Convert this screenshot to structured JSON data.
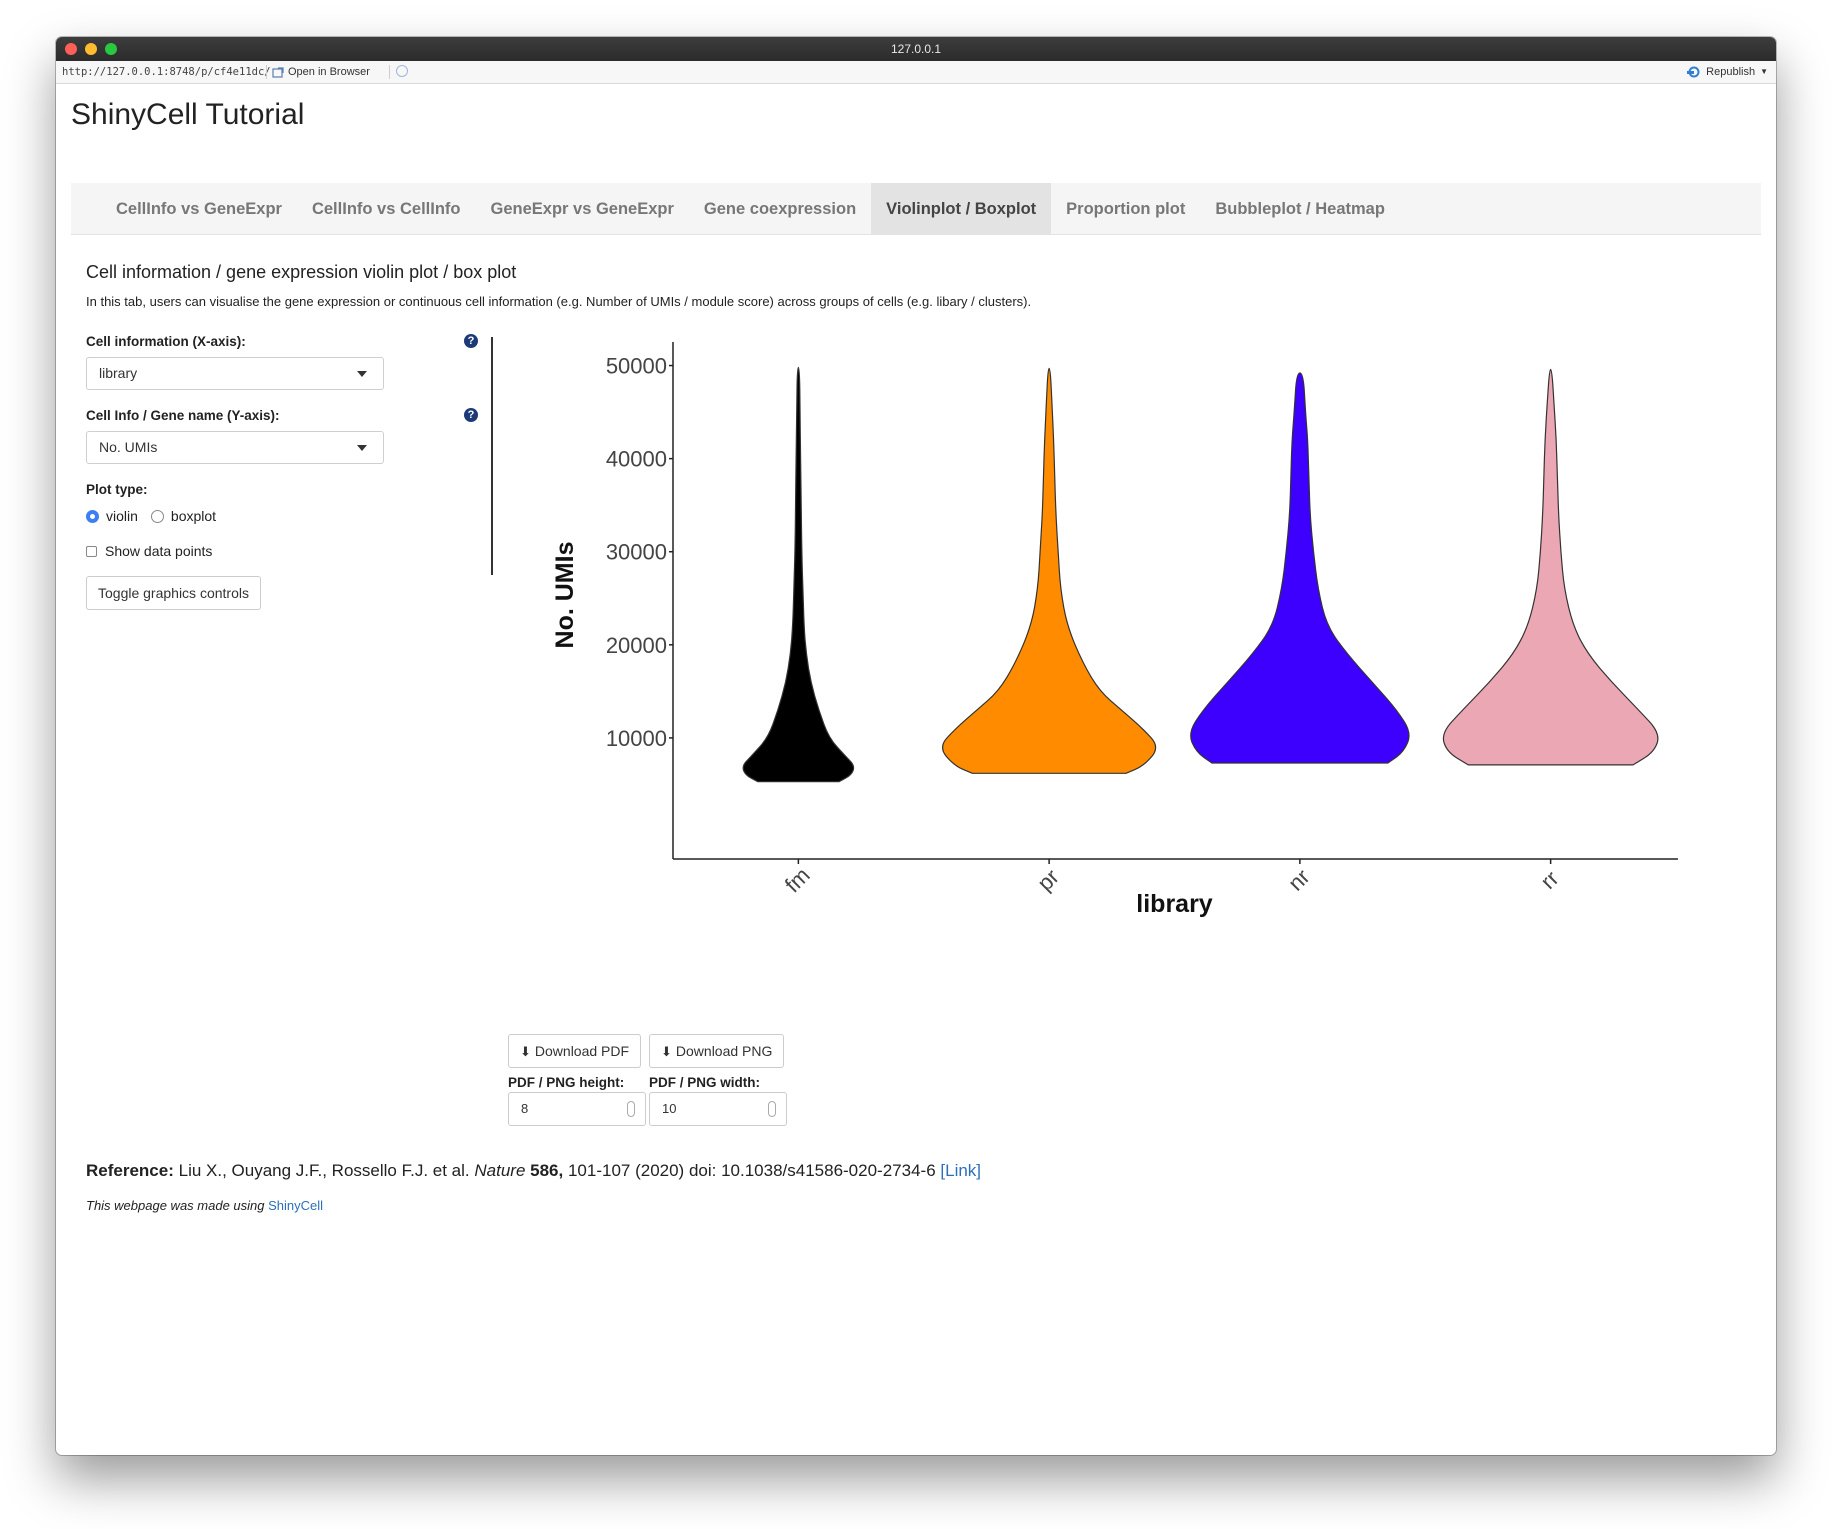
{
  "window": {
    "title": "127.0.0.1"
  },
  "urlbar": {
    "url": "http://127.0.0.1:8748/p/cf4e11dc/",
    "open_in_browser": "Open in Browser",
    "republish": "Republish"
  },
  "app": {
    "title": "ShinyCell Tutorial"
  },
  "tabs": [
    {
      "label": "CellInfo vs GeneExpr"
    },
    {
      "label": "CellInfo vs CellInfo"
    },
    {
      "label": "GeneExpr vs GeneExpr"
    },
    {
      "label": "Gene coexpression"
    },
    {
      "label": "Violinplot / Boxplot"
    },
    {
      "label": "Proportion plot"
    },
    {
      "label": "Bubbleplot / Heatmap"
    }
  ],
  "active_tab": "Violinplot / Boxplot",
  "section": {
    "title": "Cell information / gene expression violin plot / box plot",
    "description": "In this tab, users can visualise the gene expression or continuous cell information (e.g. Number of UMIs / module score) across groups of cells (e.g. libary / clusters)."
  },
  "controls": {
    "x_label": "Cell information (X-axis):",
    "x_value": "library",
    "y_label": "Cell Info / Gene name (Y-axis):",
    "y_value": "No. UMIs",
    "plot_type_label": "Plot type:",
    "plot_type_options": [
      "violin",
      "boxplot"
    ],
    "plot_type_selected": "violin",
    "show_points_label": "Show data points",
    "show_points_checked": false,
    "toggle_button": "Toggle graphics controls",
    "help_icon": "question-circle-icon"
  },
  "downloads": {
    "pdf_button": "Download PDF",
    "png_button": "Download PNG",
    "icon": "download-icon",
    "height_label": "PDF / PNG height:",
    "height_value": "8",
    "width_label": "PDF / PNG width:",
    "width_value": "10"
  },
  "reference": {
    "label": "Reference:",
    "authors": "Liu X., Ouyang J.F., Rossello F.J. et al.",
    "journal": "Nature",
    "volume": "586,",
    "pages_doi": "101-107 (2020) doi: 10.1038/s41586-020-2734-6",
    "link_text": "[Link]"
  },
  "footer": {
    "text": "This webpage was made using",
    "link_text": "ShinyCell"
  },
  "chart_data": {
    "type": "violin",
    "xlabel": "library",
    "ylabel": "No. UMIs",
    "categories": [
      "fm",
      "pr",
      "nr",
      "rr"
    ],
    "colors": [
      "#000000",
      "#ff8c00",
      "#3d00ff",
      "#eba8b4"
    ],
    "ylim": [
      2900,
      52100
    ],
    "yticks": [
      10000,
      20000,
      30000,
      40000,
      50000
    ],
    "ytick_labels": [
      "10000",
      "20000",
      "30000",
      "40000",
      "50000"
    ],
    "grid": false,
    "violins": [
      {
        "name": "fm",
        "min": 5300,
        "max": 49800,
        "profile": [
          [
            5300,
            0.36
          ],
          [
            6000,
            0.47
          ],
          [
            7000,
            0.5
          ],
          [
            8000,
            0.42
          ],
          [
            10000,
            0.27
          ],
          [
            13000,
            0.18
          ],
          [
            16000,
            0.11
          ],
          [
            19000,
            0.07
          ],
          [
            22000,
            0.05
          ],
          [
            26000,
            0.04
          ],
          [
            30000,
            0.03
          ],
          [
            35000,
            0.025
          ],
          [
            40000,
            0.02
          ],
          [
            45000,
            0.015
          ],
          [
            49800,
            0.01
          ]
        ]
      },
      {
        "name": "pr",
        "min": 6200,
        "max": 49700,
        "profile": [
          [
            6200,
            0.68
          ],
          [
            7000,
            0.84
          ],
          [
            9000,
            0.98
          ],
          [
            11000,
            0.83
          ],
          [
            13000,
            0.64
          ],
          [
            15000,
            0.45
          ],
          [
            18000,
            0.3
          ],
          [
            22000,
            0.16
          ],
          [
            26000,
            0.1
          ],
          [
            30000,
            0.08
          ],
          [
            34000,
            0.06
          ],
          [
            38000,
            0.05
          ],
          [
            42000,
            0.04
          ],
          [
            46000,
            0.025
          ],
          [
            49700,
            0.01
          ]
        ]
      },
      {
        "name": "nr",
        "min": 7300,
        "max": 49200,
        "profile": [
          [
            7300,
            0.78
          ],
          [
            8500,
            0.92
          ],
          [
            10500,
            0.99
          ],
          [
            13000,
            0.86
          ],
          [
            16000,
            0.64
          ],
          [
            19000,
            0.42
          ],
          [
            22000,
            0.24
          ],
          [
            26000,
            0.16
          ],
          [
            30000,
            0.12
          ],
          [
            34000,
            0.09
          ],
          [
            38000,
            0.08
          ],
          [
            42000,
            0.07
          ],
          [
            45000,
            0.05
          ],
          [
            49200,
            0.03
          ]
        ]
      },
      {
        "name": "rr",
        "min": 7100,
        "max": 49600,
        "profile": [
          [
            7100,
            0.73
          ],
          [
            8500,
            0.92
          ],
          [
            10500,
            0.97
          ],
          [
            13000,
            0.78
          ],
          [
            16000,
            0.54
          ],
          [
            19000,
            0.33
          ],
          [
            22000,
            0.2
          ],
          [
            26000,
            0.12
          ],
          [
            30000,
            0.09
          ],
          [
            34000,
            0.07
          ],
          [
            38000,
            0.06
          ],
          [
            42000,
            0.05
          ],
          [
            46000,
            0.03
          ],
          [
            49600,
            0.01
          ]
        ]
      }
    ]
  }
}
